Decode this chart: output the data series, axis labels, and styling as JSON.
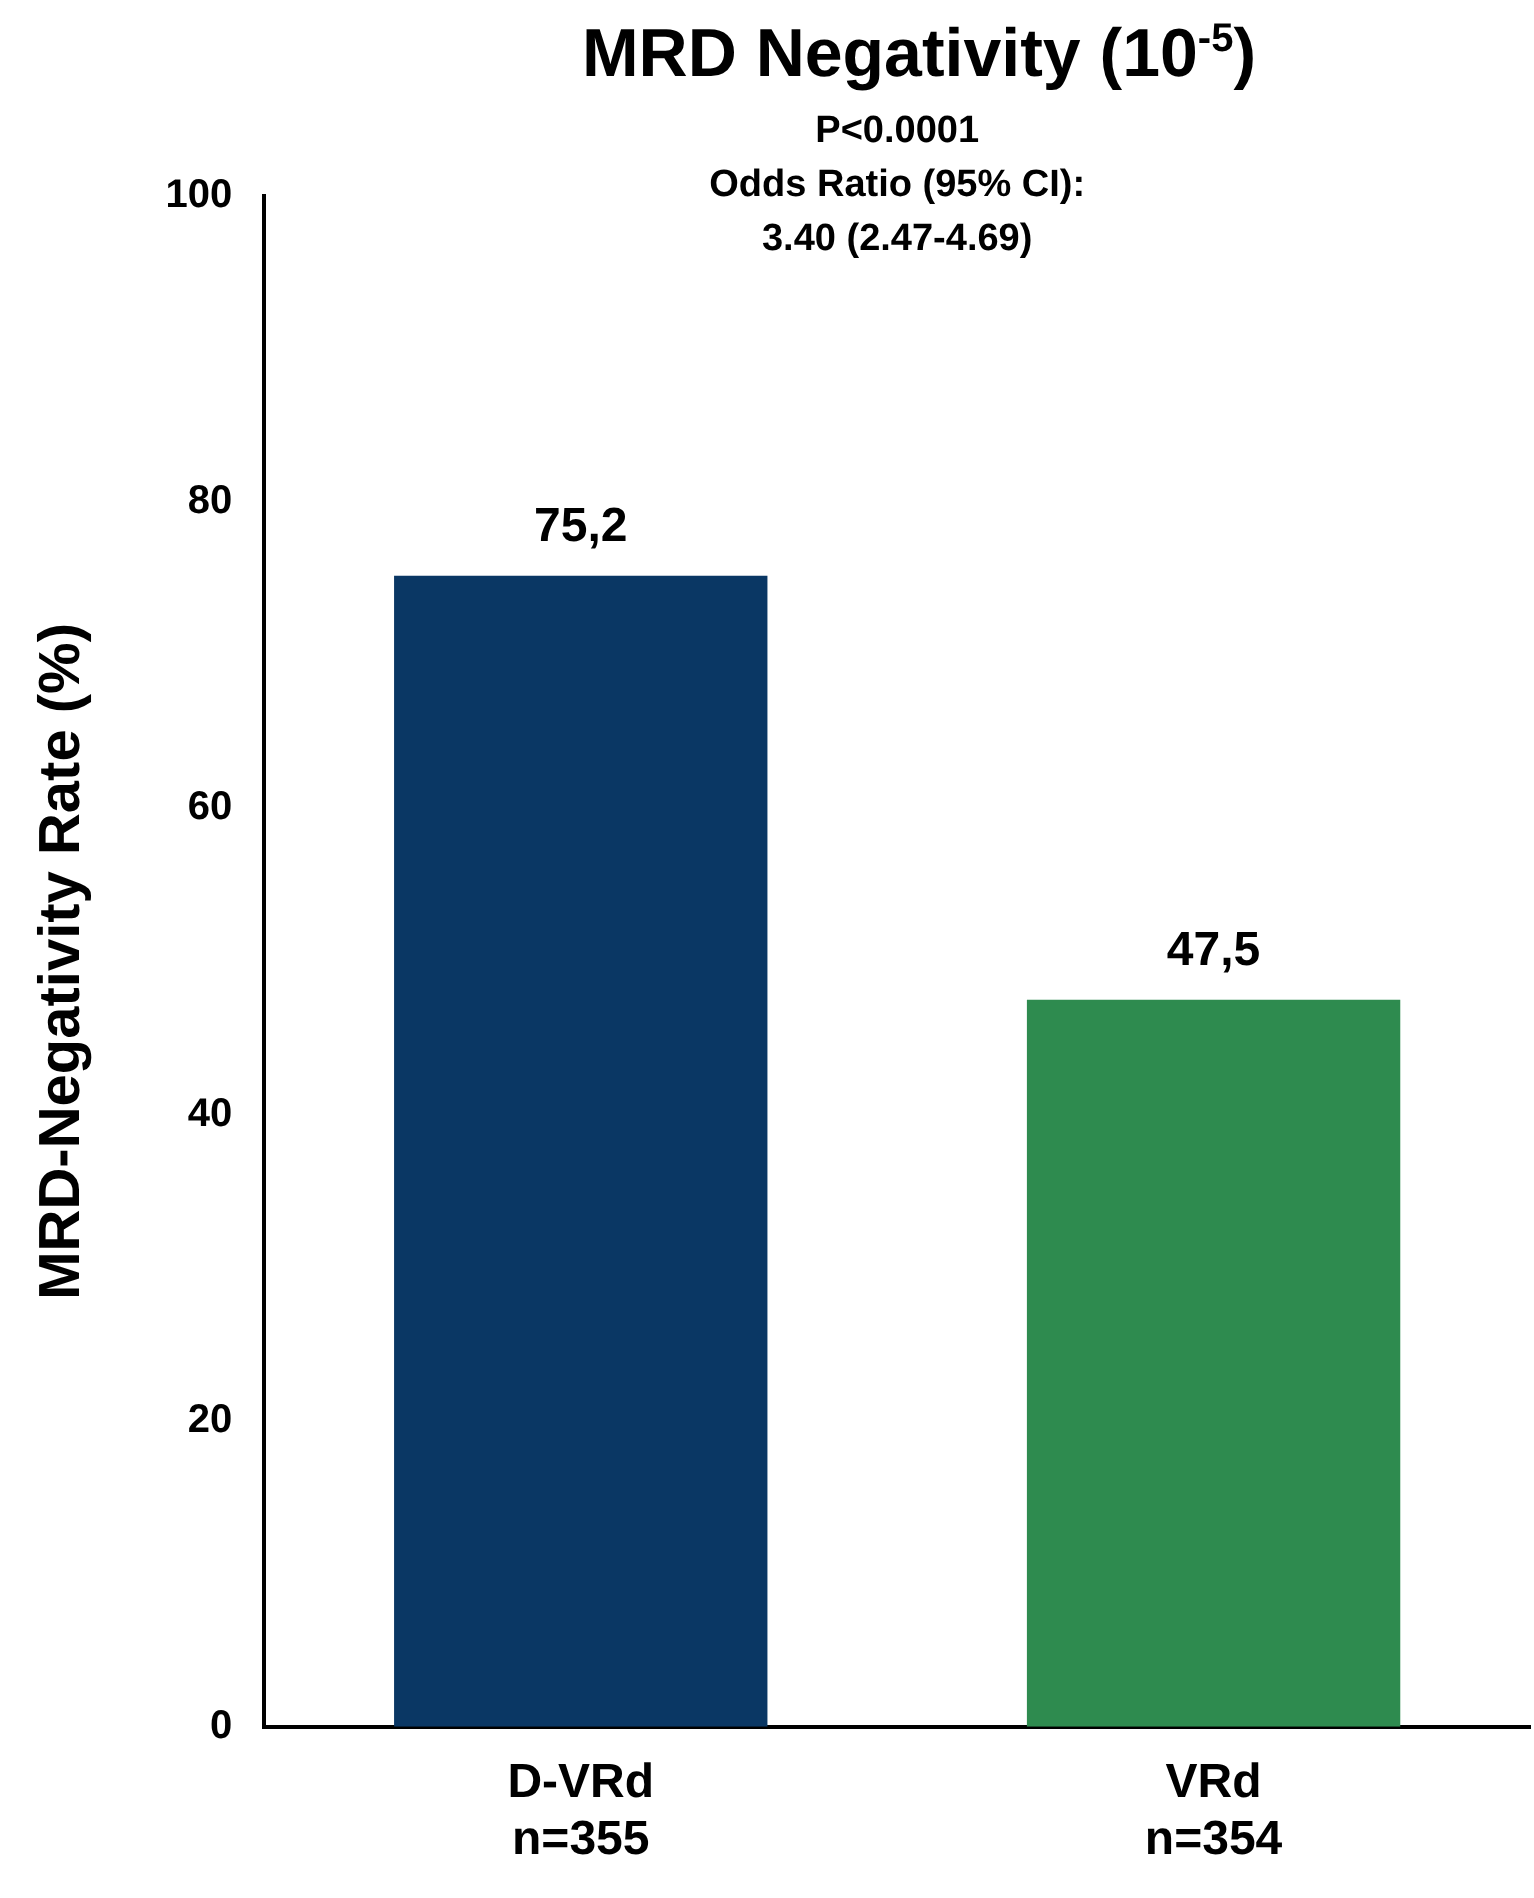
{
  "chart_data": {
    "type": "bar",
    "title": "MRD Negativity (10$^{-5}$)",
    "ylabel": "MRD-Negativity Rate (%)",
    "annotations": [
      "P<0.0001",
      "Odds Ratio (95% CI):",
      "3.40 (2.47-4.69)"
    ],
    "categories": [
      "D-VRd\nn=355",
      "VRd\nn=354"
    ],
    "values": [
      75.2,
      47.5
    ],
    "colors": [
      "#0a3764",
      "#2e8b4f"
    ],
    "value_labels": [
      "75,2",
      "47,5"
    ],
    "ylim": [
      0,
      100
    ],
    "yticks": [
      0,
      20,
      40,
      60,
      80,
      100
    ],
    "grid": false,
    "legend": false
  }
}
